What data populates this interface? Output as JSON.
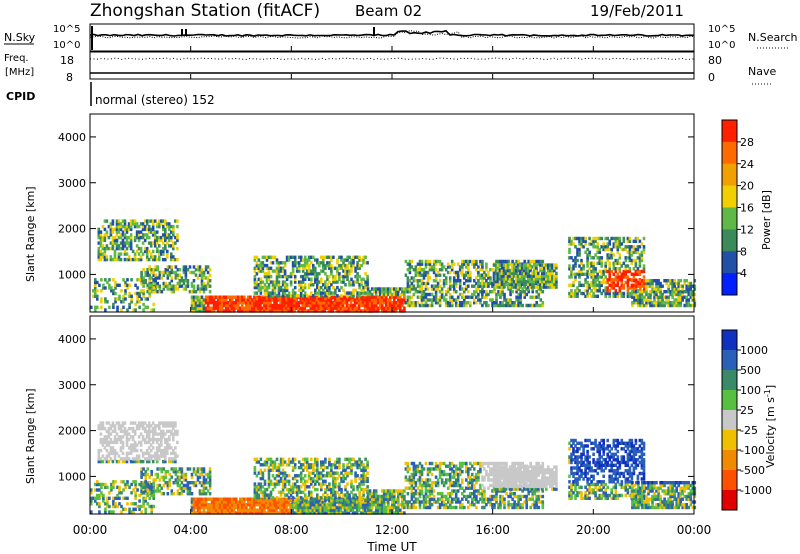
{
  "header": {
    "title": "Zhongshan Station (fitACF)",
    "beam": "Beam 02",
    "date": "19/Feb/2011"
  },
  "top_panels": {
    "nsky_label": "N.Sky",
    "nsky_ticks": [
      "10^5",
      "10^0"
    ],
    "nsearch_label": "N.Search",
    "nsearch_ticks": [
      "10^5",
      "10^0"
    ],
    "freq_label_line1": "Freq.",
    "freq_label_line2": "[MHz]",
    "freq_ticks": [
      "18",
      "8"
    ],
    "nave_label": "Nave",
    "nave_ticks": [
      "80",
      "0"
    ],
    "cpid_label": "CPID",
    "cpid_text": "normal (stereo) 152"
  },
  "chart_data": [
    {
      "type": "heatmap",
      "name": "power",
      "ylabel": "Slant Range [km]",
      "yticks": [
        1000,
        2000,
        3000,
        4000
      ],
      "ylim": [
        180,
        4500
      ],
      "colorbar_label": "Power [dB]",
      "colorbar_ticks": [
        "4",
        "8",
        "12",
        "16",
        "20",
        "24",
        "28"
      ],
      "colors": [
        "#0020ff",
        "#2250a8",
        "#3a8a5a",
        "#5fb848",
        "#f0d000",
        "#f0a000",
        "#ff6a00",
        "#ff2000"
      ]
    },
    {
      "type": "heatmap",
      "name": "velocity",
      "ylabel": "Slant Range [km]",
      "yticks": [
        1000,
        2000,
        3000,
        4000
      ],
      "ylim": [
        180,
        4500
      ],
      "colorbar_label": "Velocity [m s",
      "colorbar_label_sup": "-1",
      "colorbar_label_end": "]",
      "colorbar_ticks": [
        "1000",
        "500",
        "100",
        "25",
        "-25",
        "-100",
        "-500",
        "-1000"
      ],
      "colors": [
        "#1030c0",
        "#2a60b8",
        "#3a8a6a",
        "#58c040",
        "#c8c8c8",
        "#f0c000",
        "#f08a00",
        "#ff5000",
        "#e00000"
      ]
    }
  ],
  "xaxis": {
    "ticks": [
      "00:00",
      "04:00",
      "08:00",
      "12:00",
      "16:00",
      "20:00",
      "00:00"
    ],
    "label": "Time UT"
  }
}
